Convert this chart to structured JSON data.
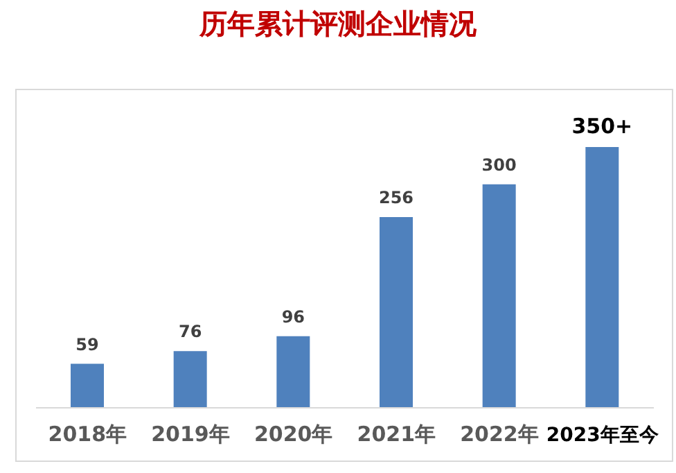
{
  "chart_data": {
    "type": "bar",
    "title": "历年累计评测企业情况",
    "categories": [
      "2018年",
      "2019年",
      "2020年",
      "2021年",
      "2022年",
      "2023年至今"
    ],
    "values": [
      59,
      76,
      96,
      256,
      300,
      350
    ],
    "value_labels": [
      "59",
      "76",
      "96",
      "256",
      "300",
      "350+"
    ],
    "color": "#4f81bd",
    "grid": false,
    "legend": false
  }
}
